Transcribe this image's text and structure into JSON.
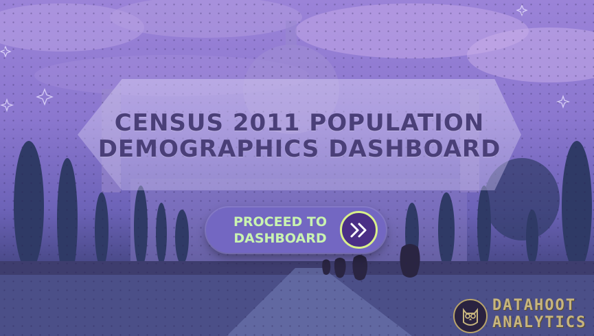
{
  "title": {
    "line1": "CENSUS 2011 POPULATION",
    "line2": "DEMOGRAPHICS DASHBOARD"
  },
  "proceed_button": {
    "line1": "PROCEED TO",
    "line2": "DASHBOARD",
    "icon": "double-chevron-right-icon"
  },
  "logo": {
    "line1": "DATAHOOT",
    "line2": "ANALYTICS",
    "icon": "owl-icon"
  },
  "colors": {
    "accent": "#d9f08a",
    "button_bg": "#7367c2",
    "title_text": "#4a3f78",
    "logo_gold": "#c7b57e"
  }
}
